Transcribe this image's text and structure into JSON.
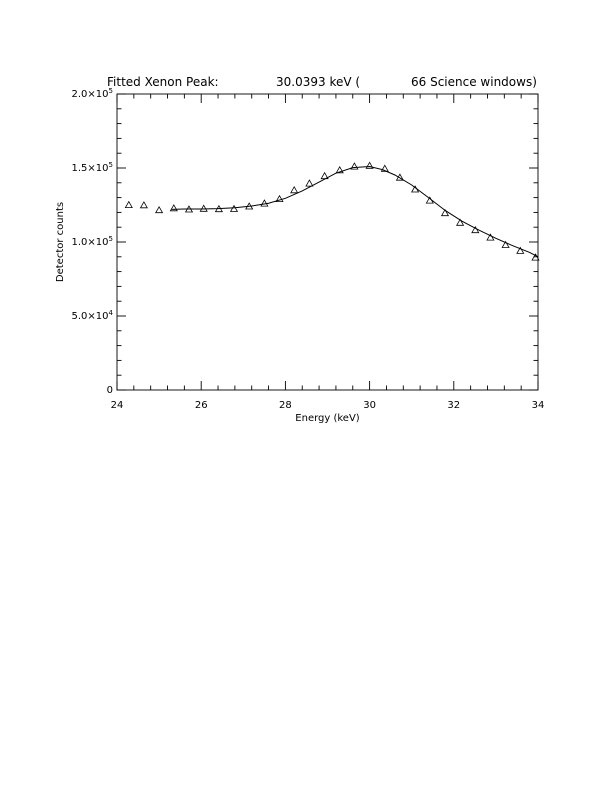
{
  "chart_data": {
    "type": "scatter",
    "title": {
      "prefix": "Fitted Xenon Peak:",
      "value": "30.0393 keV (",
      "suffix": "66 Science windows)"
    },
    "xlabel": "Energy (keV)",
    "ylabel": "Detector counts",
    "xlim": [
      24,
      34
    ],
    "ylim": [
      0,
      200000
    ],
    "x_ticks": [
      {
        "value": 24,
        "label": "24"
      },
      {
        "value": 26,
        "label": "26"
      },
      {
        "value": 28,
        "label": "28"
      },
      {
        "value": 30,
        "label": "30"
      },
      {
        "value": 32,
        "label": "32"
      },
      {
        "value": 34,
        "label": "34"
      }
    ],
    "x_minor_step": 0.4,
    "y_ticks": [
      {
        "value": 0,
        "label": "0"
      },
      {
        "value": 50000,
        "mantissa": "5.0×10",
        "exp": "4"
      },
      {
        "value": 100000,
        "mantissa": "1.0×10",
        "exp": "5"
      },
      {
        "value": 150000,
        "mantissa": "1.5×10",
        "exp": "5"
      },
      {
        "value": 200000,
        "mantissa": "2.0×10",
        "exp": "5"
      }
    ],
    "y_minor_step": 10000,
    "grid": false,
    "series": [
      {
        "marker": "triangle",
        "x": [
          24.28,
          24.64,
          25.0,
          25.35,
          25.71,
          26.06,
          26.42,
          26.78,
          27.14,
          27.5,
          27.86,
          28.21,
          28.57,
          28.93,
          29.29,
          29.64,
          30.0,
          30.36,
          30.72,
          31.08,
          31.43,
          31.79,
          32.15,
          32.51,
          32.87,
          33.23,
          33.58,
          33.94
        ],
        "y": [
          125000,
          124800,
          121500,
          122800,
          122000,
          122500,
          122200,
          122300,
          124000,
          126000,
          129000,
          135000,
          139500,
          144500,
          148500,
          151000,
          151500,
          149500,
          143500,
          135500,
          128000,
          119500,
          113000,
          108000,
          103000,
          98000,
          94000,
          89500
        ]
      },
      {
        "style": "line",
        "x": [
          25.3,
          25.6,
          26.0,
          26.4,
          26.8,
          27.2,
          27.6,
          28.0,
          28.4,
          28.8,
          29.2,
          29.6,
          30.0,
          30.3,
          30.6,
          31.0,
          31.4,
          31.8,
          32.2,
          32.6,
          33.0,
          33.4,
          33.8,
          34.0
        ],
        "y": [
          122000,
          122300,
          122300,
          122600,
          123200,
          124300,
          126200,
          129500,
          134500,
          140500,
          146500,
          150300,
          151000,
          149000,
          145300,
          138500,
          130000,
          121200,
          114000,
          108000,
          102500,
          97500,
          93000,
          90000
        ]
      }
    ]
  }
}
